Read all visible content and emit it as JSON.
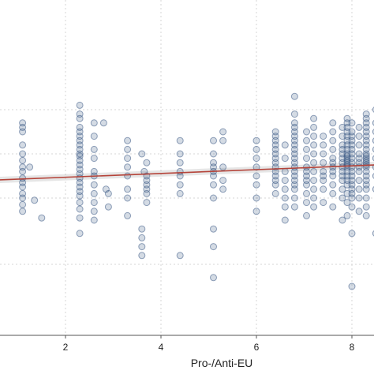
{
  "chart_data": {
    "type": "scatter",
    "title": "",
    "xlabel": "Pro-/Anti-EU",
    "ylabel": "",
    "xlim": [
      0.6,
      8.5
    ],
    "ylim": [
      -1.0,
      3.8
    ],
    "x_ticks": [
      2,
      4,
      6,
      8
    ],
    "x_tick_labels": [
      "2",
      "4",
      "6",
      "8"
    ],
    "grid": "vertical and horizontal dotted",
    "legend": "none",
    "colors": {
      "points": "#3c5a85",
      "fit_line": "#b5443a",
      "band": "#8c8c8c"
    },
    "fit_line": {
      "x": [
        0.6,
        8.5
      ],
      "y": [
        1.41,
        1.75
      ]
    },
    "series": [
      {
        "x": [
          1.1,
          1.1,
          1.1,
          1.1,
          1.1,
          1.1,
          1.1,
          1.1,
          1.1,
          1.1,
          1.1,
          1.1,
          1.1,
          1.1,
          1.1,
          1.25,
          1.35,
          1.5,
          2.3,
          2.3,
          2.3,
          2.3,
          2.3,
          2.3,
          2.3,
          2.3,
          2.3,
          2.3,
          2.3,
          2.3,
          2.3,
          2.3,
          2.3,
          2.3,
          2.3,
          2.3,
          2.3,
          2.3,
          2.3,
          2.3,
          2.3,
          2.3,
          2.6,
          2.6,
          2.6,
          2.6,
          2.6,
          2.6,
          2.6,
          2.6,
          2.6,
          2.6,
          2.6,
          2.8,
          2.85,
          2.9,
          2.9,
          3.3,
          3.3,
          3.3,
          3.3,
          3.3,
          3.3,
          3.3,
          3.3,
          3.6,
          3.6,
          3.6,
          3.6,
          3.6,
          3.65,
          3.7,
          3.7,
          3.7,
          3.7,
          3.7,
          3.7,
          3.7,
          4.4,
          4.4,
          4.4,
          4.4,
          4.4,
          4.4,
          4.4,
          4.4,
          5.1,
          5.1,
          5.1,
          5.1,
          5.1,
          5.1,
          5.1,
          5.1,
          5.1,
          5.1,
          5.1,
          5.3,
          5.3,
          5.3,
          5.3,
          5.3,
          6.0,
          6.0,
          6.0,
          6.0,
          6.0,
          6.0,
          6.0,
          6.0,
          6.4,
          6.4,
          6.4,
          6.4,
          6.4,
          6.4,
          6.4,
          6.4,
          6.4,
          6.4,
          6.4,
          6.4,
          6.4,
          6.4,
          6.6,
          6.6,
          6.6,
          6.6,
          6.6,
          6.6,
          6.6,
          6.6,
          6.8,
          6.8,
          6.8,
          6.8,
          6.8,
          6.8,
          6.8,
          6.8,
          6.8,
          6.8,
          6.8,
          6.8,
          6.8,
          6.8,
          6.8,
          6.8,
          6.8,
          6.8,
          6.8,
          6.8,
          7.05,
          7.05,
          7.05,
          7.05,
          7.05,
          7.05,
          7.05,
          7.05,
          7.05,
          7.05,
          7.05,
          7.05,
          7.2,
          7.2,
          7.2,
          7.2,
          7.2,
          7.2,
          7.2,
          7.2,
          7.2,
          7.2,
          7.2,
          7.4,
          7.4,
          7.4,
          7.4,
          7.4,
          7.4,
          7.4,
          7.4,
          7.4,
          7.6,
          7.6,
          7.6,
          7.6,
          7.6,
          7.6,
          7.6,
          7.6,
          7.6,
          7.6,
          7.6,
          7.6,
          7.8,
          7.8,
          7.8,
          7.8,
          7.8,
          7.8,
          7.8,
          7.8,
          7.8,
          7.8,
          7.8,
          7.8,
          7.8,
          7.8,
          7.9,
          7.9,
          7.9,
          7.9,
          7.9,
          7.9,
          7.9,
          7.9,
          7.9,
          7.9,
          7.9,
          7.9,
          7.9,
          7.9,
          7.9,
          7.9,
          7.9,
          7.9,
          7.9,
          7.9,
          7.9,
          7.9,
          8.0,
          8.0,
          8.0,
          8.0,
          8.0,
          8.0,
          8.0,
          8.0,
          8.0,
          8.0,
          8.0,
          8.0,
          8.0,
          8.0,
          8.0,
          8.0,
          8.0,
          8.0,
          8.0,
          8.0,
          8.15,
          8.15,
          8.15,
          8.15,
          8.15,
          8.15,
          8.15,
          8.15,
          8.15,
          8.15,
          8.15,
          8.15,
          8.3,
          8.3,
          8.3,
          8.3,
          8.3,
          8.3,
          8.3,
          8.3,
          8.3,
          8.3,
          8.3,
          8.3,
          8.3,
          8.3,
          8.3,
          8.3,
          8.3,
          8.3,
          8.3,
          8.3,
          8.3,
          8.3,
          8.3,
          8.3,
          8.5,
          8.5,
          8.5,
          8.5,
          8.5,
          8.5,
          8.5,
          8.5,
          8.5,
          8.5
        ],
        "y": [
          2.7,
          2.6,
          2.5,
          2.2,
          2.0,
          1.85,
          1.7,
          1.6,
          1.45,
          1.35,
          1.25,
          1.1,
          1.0,
          0.85,
          0.7,
          1.7,
          0.95,
          0.55,
          3.1,
          2.9,
          2.8,
          2.6,
          2.5,
          2.4,
          2.3,
          2.2,
          2.1,
          2.0,
          1.95,
          1.85,
          1.75,
          1.65,
          1.55,
          1.45,
          1.35,
          1.25,
          1.15,
          1.05,
          0.9,
          0.75,
          0.55,
          0.2,
          2.7,
          2.4,
          2.1,
          1.9,
          1.6,
          1.5,
          1.3,
          1.1,
          0.9,
          0.7,
          0.5,
          2.7,
          1.2,
          1.1,
          0.8,
          2.3,
          2.1,
          1.9,
          1.7,
          1.5,
          1.2,
          1.0,
          0.6,
          0.3,
          0.1,
          -0.1,
          -0.3,
          2.0,
          1.6,
          1.8,
          1.5,
          1.4,
          1.3,
          1.2,
          1.1,
          0.9,
          2.3,
          2.0,
          1.8,
          1.6,
          1.5,
          1.3,
          1.1,
          -0.3,
          2.3,
          2.0,
          1.8,
          1.7,
          1.6,
          1.5,
          1.3,
          1.0,
          0.3,
          -0.1,
          -0.8,
          2.5,
          2.3,
          1.7,
          1.4,
          1.2,
          2.3,
          2.1,
          1.9,
          1.7,
          1.5,
          1.3,
          1.0,
          0.7,
          2.5,
          2.4,
          2.3,
          2.2,
          2.1,
          2.0,
          1.9,
          1.8,
          1.7,
          1.6,
          1.5,
          1.4,
          1.3,
          1.1,
          2.2,
          1.9,
          1.6,
          1.4,
          1.2,
          1.0,
          0.8,
          0.5,
          3.3,
          2.9,
          2.7,
          2.6,
          2.5,
          2.4,
          2.3,
          2.2,
          2.1,
          2.0,
          1.9,
          1.8,
          1.7,
          1.6,
          1.5,
          1.4,
          1.3,
          1.2,
          1.0,
          0.8,
          2.5,
          2.3,
          2.1,
          1.9,
          1.7,
          1.6,
          1.5,
          1.4,
          1.3,
          1.1,
          0.9,
          0.6,
          2.8,
          2.6,
          2.4,
          2.2,
          2.0,
          1.8,
          1.6,
          1.4,
          1.2,
          1.0,
          0.8,
          2.4,
          2.2,
          2.0,
          1.8,
          1.6,
          1.5,
          1.4,
          1.2,
          0.9,
          2.7,
          2.5,
          2.3,
          2.1,
          1.9,
          1.8,
          1.7,
          1.6,
          1.5,
          1.3,
          1.1,
          0.8,
          2.6,
          2.4,
          2.2,
          2.1,
          2.0,
          1.9,
          1.8,
          1.7,
          1.6,
          1.5,
          1.4,
          1.2,
          1.0,
          0.5,
          2.8,
          2.7,
          2.6,
          2.5,
          2.4,
          2.3,
          2.2,
          2.1,
          2.0,
          1.95,
          1.9,
          1.85,
          1.8,
          1.75,
          1.7,
          1.6,
          1.5,
          1.4,
          1.3,
          1.1,
          0.9,
          0.6,
          2.7,
          2.5,
          2.4,
          2.3,
          2.2,
          2.1,
          2.0,
          1.9,
          1.8,
          1.7,
          1.6,
          1.5,
          1.4,
          1.3,
          1.2,
          1.1,
          1.0,
          0.8,
          0.2,
          -1.0,
          2.6,
          2.4,
          2.2,
          2.0,
          1.9,
          1.8,
          1.7,
          1.6,
          1.4,
          1.2,
          1.0,
          0.7,
          2.9,
          2.8,
          2.7,
          2.6,
          2.5,
          2.4,
          2.3,
          2.2,
          2.1,
          2.0,
          1.95,
          1.9,
          1.85,
          1.8,
          1.75,
          1.7,
          1.6,
          1.5,
          1.4,
          1.3,
          1.2,
          1.0,
          0.8,
          0.6,
          3.0,
          2.7,
          2.5,
          2.3,
          2.1,
          1.9,
          1.7,
          1.5,
          1.2,
          0.2
        ]
      }
    ]
  }
}
